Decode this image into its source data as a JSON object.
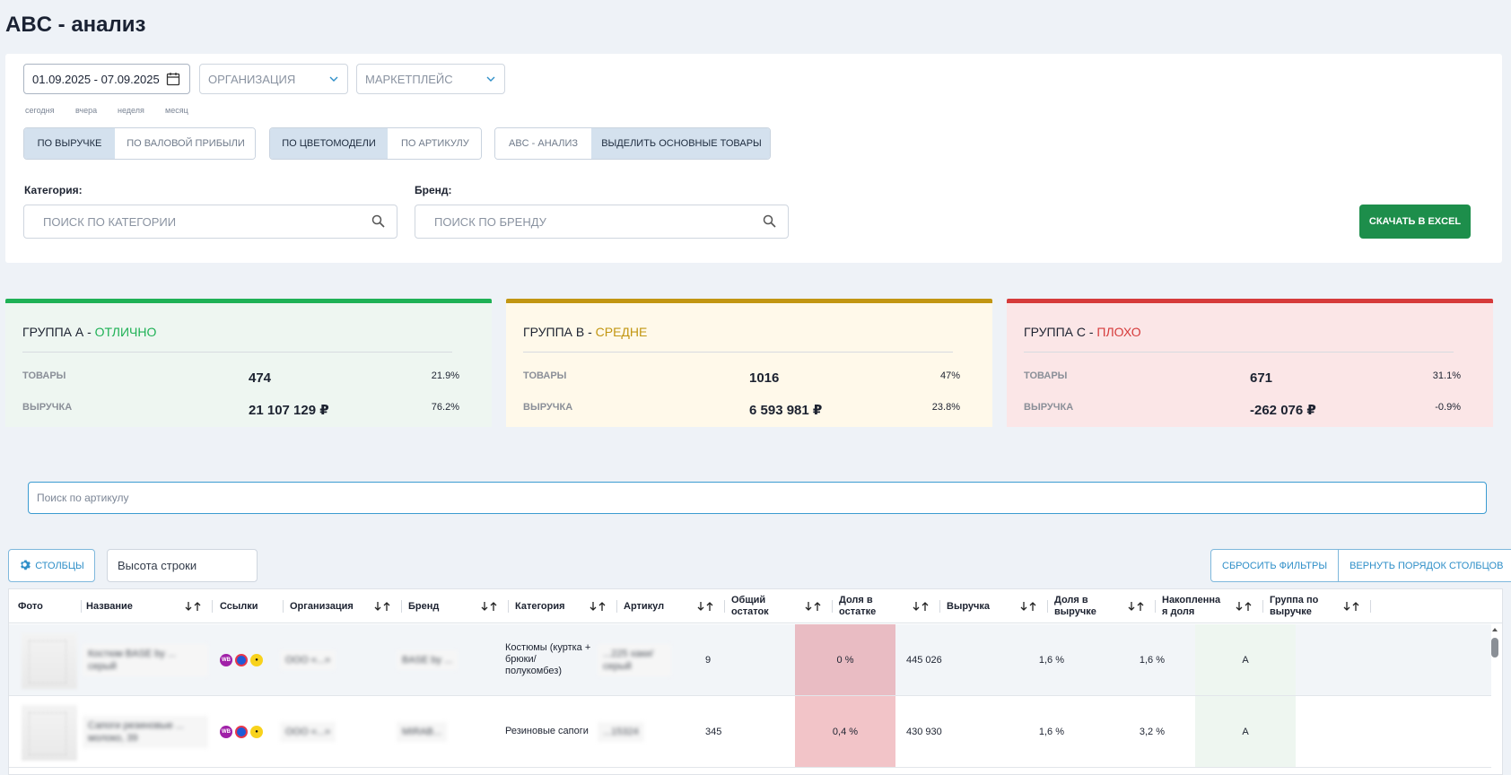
{
  "page": {
    "title": "ABC - анализ"
  },
  "filters": {
    "date_range": "01.09.2025 - 07.09.2025",
    "organization_placeholder": "ОРГАНИЗАЦИЯ",
    "marketplace_placeholder": "МАРКЕТПЛЕЙС",
    "quick_dates": [
      "сегодня",
      "вчера",
      "неделя",
      "месяц"
    ],
    "metric_toggle": [
      "ПО ВЫРУЧКЕ",
      "ПО ВАЛОВОЙ ПРИБЫЛИ"
    ],
    "grouping_toggle": [
      "ПО ЦВЕТОМОДЕЛИ",
      "ПО АРТИКУЛУ"
    ],
    "mode_toggle": [
      "ABC - АНАЛИЗ",
      "ВЫДЕЛИТЬ ОСНОВНЫЕ ТОВАРЫ"
    ],
    "category_label": "Категория:",
    "category_placeholder": "ПОИСК ПО КАТЕГОРИИ",
    "brand_label": "Бренд:",
    "brand_placeholder": "ПОИСК ПО БРЕНДУ",
    "excel_button": "СКАЧАТЬ В EXCEL"
  },
  "groups": [
    {
      "prefix": "ГРУППА А - ",
      "grade": "ОТЛИЧНО",
      "color": "#1fb156",
      "bg": "#eef6f1",
      "grade_color": "#1fb156",
      "goods_label": "ТОВАРЫ",
      "goods_value": "474",
      "goods_pct": "21.9%",
      "revenue_label": "ВЫРУЧКА",
      "revenue_value": "21 107 129 ₽",
      "revenue_pct": "76.2%"
    },
    {
      "prefix": "ГРУППА B - ",
      "grade": "СРЕДНЕ",
      "color": "#c29612",
      "bg": "#fff9ea",
      "grade_color": "#c29612",
      "goods_label": "ТОВАРЫ",
      "goods_value": "1016",
      "goods_pct": "47%",
      "revenue_label": "ВЫРУЧКА",
      "revenue_value": "6 593 981 ₽",
      "revenue_pct": "23.8%"
    },
    {
      "prefix": "ГРУППА C - ",
      "grade": "ПЛОХО",
      "color": "#d63b3b",
      "bg": "#fbe6e7",
      "grade_color": "#d63b3b",
      "goods_label": "ТОВАРЫ",
      "goods_value": "671",
      "goods_pct": "31.1%",
      "revenue_label": "ВЫРУЧКА",
      "revenue_value": "-262 076 ₽",
      "revenue_pct": "-0.9%"
    }
  ],
  "article_search": {
    "placeholder": "Поиск по артикулу"
  },
  "toolbar": {
    "columns_button": "СТОЛБЦЫ",
    "row_height": "Высота строки",
    "reset_filters": "СБРОСИТЬ ФИЛЬТРЫ",
    "restore_columns": "ВЕРНУТЬ ПОРЯДОК СТОЛБЦОВ"
  },
  "table": {
    "columns": [
      "Фото",
      "Название",
      "Ссылки",
      "Организация",
      "Бренд",
      "Категория",
      "Артикул",
      "Общий остаток",
      "Доля в остатке",
      "Выручка",
      "Доля в выручке",
      "Накопленная доля",
      "Группа по выручке"
    ],
    "rows": [
      {
        "name": "Костюм BASE by ... серый",
        "org": "ООО «...»",
        "brand": "BASE by ...",
        "category": "Костюмы (куртка + брюки/ полукомбез)",
        "article": "...225 хаки/ серый",
        "stock": "9",
        "stock_share": "0 %",
        "revenue": "445 026",
        "revenue_share": "1,6 %",
        "cumulative": "1,6 %",
        "group": "A"
      },
      {
        "name": "Сапоги резиновые ... молоко, 39",
        "org": "ООО «...»",
        "brand": "MIRAB...",
        "category": "Резиновые сапоги",
        "article": "...15324",
        "stock": "345",
        "stock_share": "0,4 %",
        "revenue": "430 930",
        "revenue_share": "1,6 %",
        "cumulative": "3,2 %",
        "group": "A"
      }
    ]
  },
  "colors": {
    "accent": "#2f8fc8",
    "excel": "#1d8e4b",
    "stock_highlight": "#f2c4c8",
    "group_cell": "#eef6f0"
  }
}
